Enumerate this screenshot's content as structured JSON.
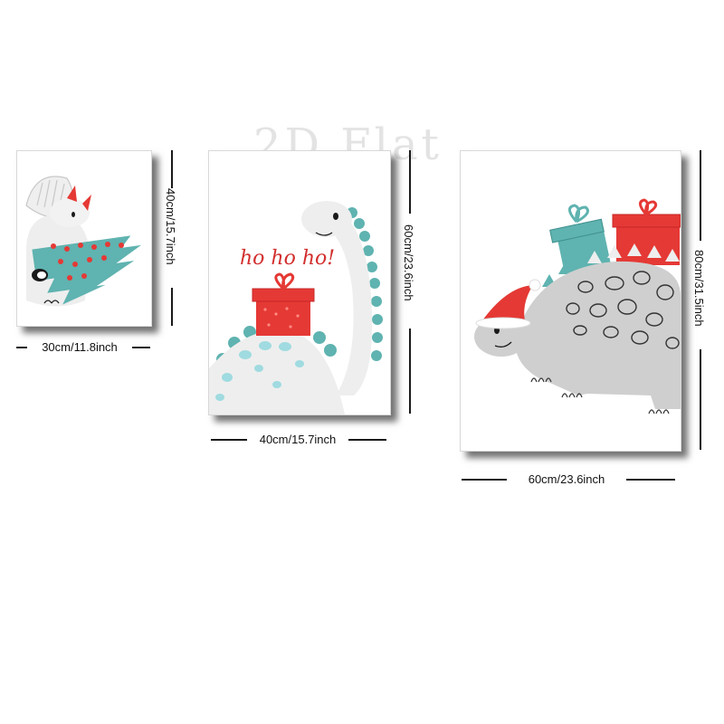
{
  "watermark": "2D Flat",
  "posters": [
    {
      "name": "triceratops-christmas-tree-print",
      "width_label": "30cm/11.8inch",
      "height_label": "40cm/15.7inch"
    },
    {
      "name": "brachiosaurus-gift-print",
      "width_label": "40cm/15.7inch",
      "height_label": "60cm/23.6inch",
      "caption": "ho ho ho!"
    },
    {
      "name": "stegosaurus-santa-hat-print",
      "width_label": "60cm/23.6inch",
      "height_label": "80cm/31.5inch"
    }
  ],
  "colors": {
    "teal": "#5fb3b0",
    "red": "#e53935",
    "gray": "#d5d5d5",
    "ink": "#1a1a1a"
  }
}
